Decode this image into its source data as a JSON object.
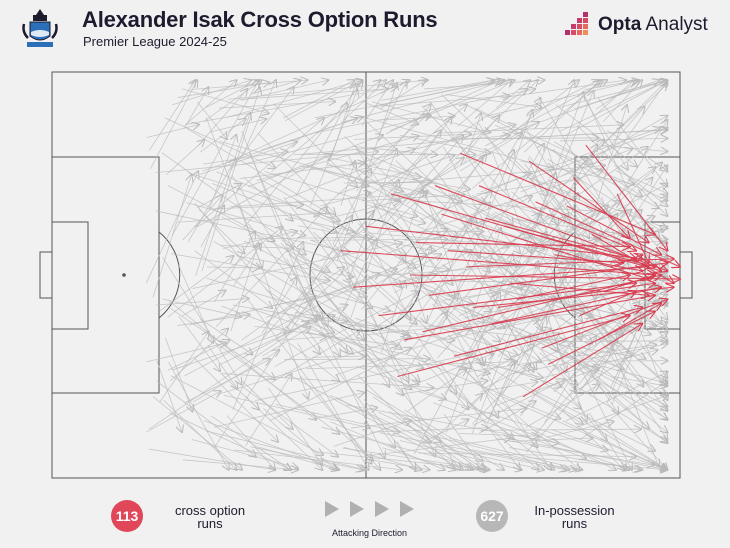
{
  "header": {
    "title": "Alexander Isak Cross Option Runs",
    "subtitle": "Premier League 2024-25"
  },
  "brand": {
    "name_bold": "Opta",
    "name_rest": " Analyst"
  },
  "legend": {
    "cross_option": {
      "count": "113",
      "label_line1": "cross option",
      "label_line2": "runs",
      "color": "#e0485a"
    },
    "in_possession": {
      "count": "627",
      "label_line1": "In-possession",
      "label_line2": "runs",
      "color": "#b7b7b7"
    },
    "direction_label": "Attacking Direction"
  },
  "colors": {
    "background": "#f1f1f1",
    "pitch_line": "#555555",
    "cross_option_arrow": "#d83a4e",
    "in_possession_arrow": "#b9b9b9"
  },
  "chart_data": {
    "type": "scatter",
    "title": "Alexander Isak Cross Option Runs",
    "subtitle": "Premier League 2024-25",
    "grid": false,
    "series": [
      {
        "name": "cross option runs",
        "count": 113,
        "representative_runs": [
          [
            46,
            44,
            96,
            50
          ],
          [
            48,
            53,
            95,
            48
          ],
          [
            50,
            38,
            94,
            46
          ],
          [
            52,
            60,
            93,
            52
          ],
          [
            54,
            30,
            97,
            49
          ],
          [
            56,
            66,
            96,
            55
          ],
          [
            58,
            42,
            92,
            43
          ],
          [
            60,
            55,
            98,
            47
          ],
          [
            62,
            35,
            95,
            51
          ],
          [
            64,
            70,
            94,
            58
          ],
          [
            66,
            48,
            99,
            46
          ],
          [
            68,
            28,
            93,
            44
          ],
          [
            70,
            62,
            97,
            53
          ],
          [
            72,
            38,
            96,
            48
          ],
          [
            74,
            56,
            92,
            50
          ],
          [
            76,
            22,
            95,
            42
          ],
          [
            78,
            68,
            98,
            56
          ],
          [
            80,
            45,
            94,
            49
          ],
          [
            82,
            33,
            97,
            45
          ],
          [
            84,
            60,
            93,
            54
          ],
          [
            86,
            40,
            99,
            52
          ],
          [
            88,
            54,
            96,
            50
          ],
          [
            90,
            30,
            95,
            47
          ],
          [
            55,
            75,
            92,
            60
          ],
          [
            65,
            20,
            96,
            40
          ],
          [
            75,
            80,
            94,
            62
          ],
          [
            85,
            18,
            98,
            44
          ],
          [
            57,
            50,
            100,
            51
          ],
          [
            67,
            58,
            99,
            53
          ],
          [
            77,
            32,
            100,
            48
          ],
          [
            87,
            66,
            97,
            57
          ],
          [
            63,
            44,
            91,
            47
          ],
          [
            73,
            52,
            95,
            55
          ],
          [
            83,
            26,
            92,
            41
          ],
          [
            59,
            64,
            97,
            50
          ],
          [
            69,
            36,
            93,
            46
          ],
          [
            79,
            72,
            96,
            59
          ],
          [
            89,
            48,
            94,
            45
          ],
          [
            61,
            28,
            98,
            49
          ],
          [
            71,
            58,
            96,
            52
          ]
        ]
      },
      {
        "name": "In-possession runs",
        "count": 627
      }
    ]
  }
}
